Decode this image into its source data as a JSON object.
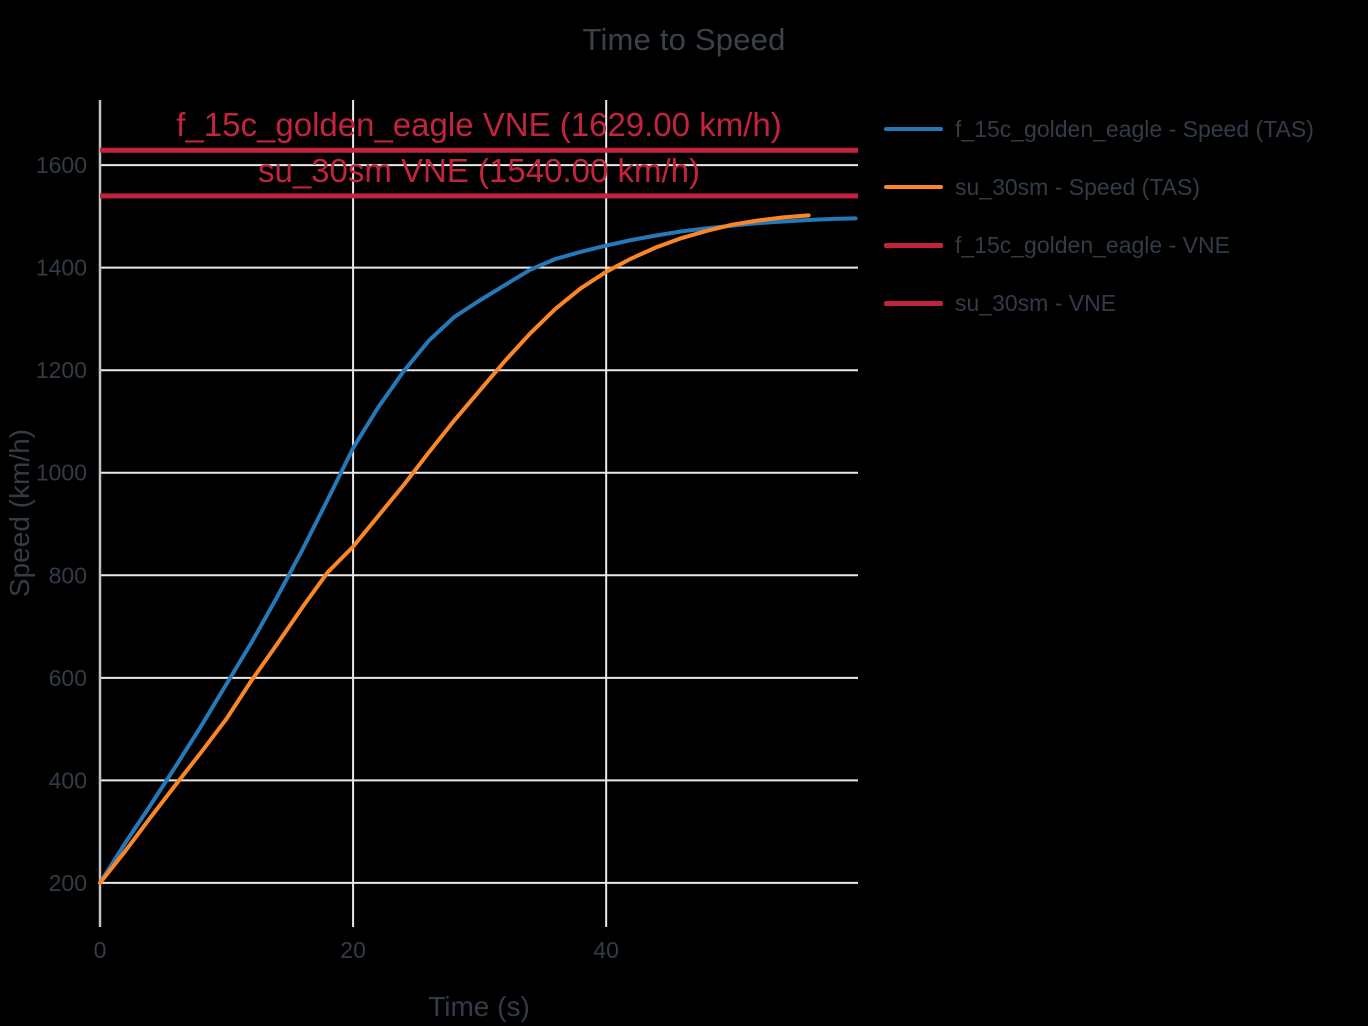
{
  "chart_data": {
    "type": "line",
    "title": "Time to Speed",
    "xlabel": "Time (s)",
    "ylabel": "Speed (km/h)",
    "xlim": [
      0,
      59.9
    ],
    "ylim": [
      114,
      1727
    ],
    "x_ticks": [
      0,
      20,
      40
    ],
    "y_ticks": [
      200,
      400,
      600,
      800,
      1000,
      1200,
      1400,
      1600
    ],
    "grid": true,
    "legend_position": "right",
    "series": [
      {
        "name": "f_15c_golden_eagle - Speed (TAS)",
        "color": "#2679b8",
        "width": 4,
        "points": [
          [
            0,
            200
          ],
          [
            2,
            278
          ],
          [
            4,
            352
          ],
          [
            6,
            428
          ],
          [
            8,
            506
          ],
          [
            10,
            588
          ],
          [
            12,
            670
          ],
          [
            14,
            758
          ],
          [
            16,
            850
          ],
          [
            18,
            948
          ],
          [
            20,
            1048
          ],
          [
            22,
            1128
          ],
          [
            24,
            1198
          ],
          [
            26,
            1258
          ],
          [
            28,
            1304
          ],
          [
            30,
            1336
          ],
          [
            32,
            1366
          ],
          [
            34,
            1396
          ],
          [
            36,
            1417
          ],
          [
            38,
            1431
          ],
          [
            40,
            1443
          ],
          [
            42,
            1454
          ],
          [
            44,
            1463
          ],
          [
            46,
            1471
          ],
          [
            48,
            1477
          ],
          [
            50,
            1482
          ],
          [
            52,
            1487
          ],
          [
            54,
            1490
          ],
          [
            56,
            1493
          ],
          [
            58,
            1495
          ],
          [
            59.7,
            1496
          ]
        ]
      },
      {
        "name": "su_30sm - Speed (TAS)",
        "color": "#fb8628",
        "width": 4,
        "points": [
          [
            0,
            200
          ],
          [
            2,
            262
          ],
          [
            4,
            328
          ],
          [
            6,
            392
          ],
          [
            8,
            455
          ],
          [
            10,
            520
          ],
          [
            12,
            596
          ],
          [
            14,
            666
          ],
          [
            16,
            738
          ],
          [
            18,
            806
          ],
          [
            20,
            856
          ],
          [
            22,
            916
          ],
          [
            24,
            976
          ],
          [
            26,
            1040
          ],
          [
            28,
            1102
          ],
          [
            30,
            1160
          ],
          [
            32,
            1218
          ],
          [
            34,
            1272
          ],
          [
            36,
            1320
          ],
          [
            38,
            1360
          ],
          [
            40,
            1392
          ],
          [
            42,
            1418
          ],
          [
            44,
            1440
          ],
          [
            46,
            1458
          ],
          [
            48,
            1472
          ],
          [
            50,
            1484
          ],
          [
            52,
            1492
          ],
          [
            54,
            1498
          ],
          [
            56,
            1502
          ]
        ]
      }
    ],
    "vne_lines": [
      {
        "name": "f_15c_golden_eagle - VNE",
        "label": "f_15c_golden_eagle VNE (1629.00 km/h)",
        "value": 1629.0,
        "color": "#c2243e",
        "width": 5
      },
      {
        "name": "su_30sm - VNE",
        "label": "su_30sm VNE (1540.00 km/h)",
        "value": 1540.0,
        "color": "#c2243e",
        "width": 5
      }
    ]
  },
  "colors": {
    "background": "#000000",
    "grid": "#e9e9e9",
    "axis_line": "#bfc2c4",
    "text": "#333b47",
    "title_text": "#3a414d",
    "vne_red": "#c2243e"
  }
}
